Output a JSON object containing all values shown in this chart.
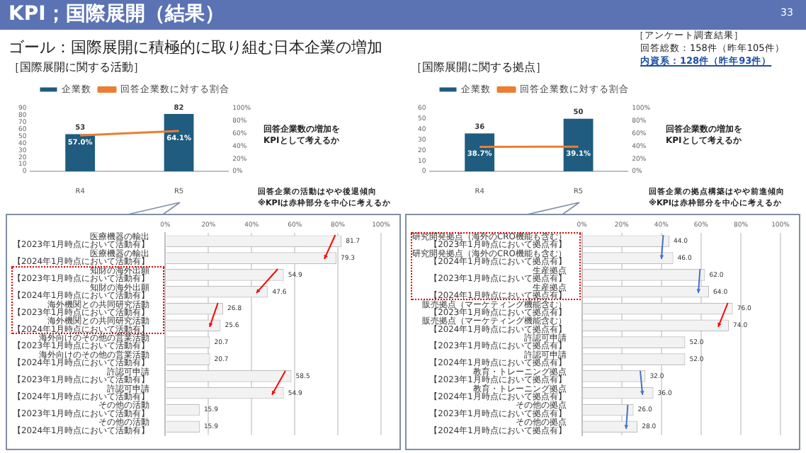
{
  "chart_data": [
    {
      "type": "bar",
      "title": "［国際展開に関する活動］",
      "categories": [
        "R4",
        "R5"
      ],
      "legend": "top",
      "grid": false,
      "marker": "none",
      "annotations": [
        "KPI；国際展開（結果）",
        "33",
        "ゴール：国際展開に積極的に取り組む日本企業の増加",
        "［アンケート調査結果］",
        "回答総数：158件（昨年105件）",
        "内資系：128件（昨年93件）",
        "回答企業数の増加を",
        "KPIとして考えるか"
      ],
      "ylim": [
        0,
        90
      ],
      "yticks": [
        0,
        10,
        20,
        30,
        40,
        50,
        60,
        70,
        80,
        90
      ],
      "y2lim": [
        0,
        100
      ],
      "y2ticks": [
        {
          "value": 0,
          "label": "0%"
        },
        {
          "value": 20,
          "label": "20%"
        },
        {
          "value": 40,
          "label": "40%"
        },
        {
          "value": 60,
          "label": "60%"
        },
        {
          "value": 80,
          "label": "80%"
        },
        {
          "value": 100,
          "label": "100%"
        }
      ],
      "series": [
        {
          "name": "企業数",
          "type": "bar",
          "color": "#1f5c7f",
          "values": [
            53,
            82
          ],
          "value_labels": [
            "53",
            "82"
          ]
        },
        {
          "name": "回答企業数に対する割合",
          "type": "line",
          "axis": "y2",
          "color": "#ed7d31",
          "values": [
            57.0,
            64.1
          ],
          "value_labels": [
            "57.0%",
            "64.1%"
          ]
        }
      ]
    },
    {
      "type": "bar",
      "title": "［国際展開に関する拠点］",
      "categories": [
        "R4",
        "R5"
      ],
      "legend": "top",
      "grid": false,
      "marker": "none",
      "annotations": [
        "回答企業数の増加を",
        "KPIとして考えるか"
      ],
      "ylim": [
        0,
        60
      ],
      "yticks": [
        0,
        10,
        20,
        30,
        40,
        50,
        60
      ],
      "y2lim": [
        0,
        100
      ],
      "y2ticks": [
        {
          "value": 0,
          "label": "0%"
        },
        {
          "value": 20,
          "label": "20%"
        },
        {
          "value": 40,
          "label": "40%"
        },
        {
          "value": 60,
          "label": "60%"
        },
        {
          "value": 80,
          "label": "80%"
        },
        {
          "value": 100,
          "label": "100%"
        }
      ],
      "series": [
        {
          "name": "企業数",
          "type": "bar",
          "color": "#1f5c7f",
          "values": [
            36,
            50
          ],
          "value_labels": [
            "36",
            "50"
          ]
        },
        {
          "name": "回答企業数に対する割合",
          "type": "line",
          "axis": "y2",
          "color": "#ed7d31",
          "values": [
            38.7,
            39.1
          ],
          "value_labels": [
            "38.7%",
            "39.1%"
          ]
        }
      ]
    },
    {
      "type": "bar",
      "orientation": "horizontal",
      "grid": "x",
      "data_labels": true,
      "color": "#f2f2f2",
      "annotations": [
        "回答企業の活動はやや後退傾向",
        "※KPIは赤枠部分を中心に考えるか"
      ],
      "categories": [
        "医療機器の輸出【2023年1月時点において活動有】",
        "医療機器の輸出【2024年1月時点において活動有】",
        "知財の海外出願【2023年1月時点において活動有】",
        "知財の海外出願【2024年1月時点において活動有】",
        "海外機関との共同研究活動【2023年1月時点において活動有】",
        "海外機関との共同研究活動【2024年1月時点において活動有】",
        "海外向けのその他の営業活動【2023年1月時点において活動有】",
        "海外向けのその他の営業活動【2024年1月時点において活動有】",
        "許認可申請【2023年1月時点において活動有】",
        "許認可申請【2024年1月時点において活動有】",
        "その他の活動【2023年1月時点において活動有】",
        "その他の活動【2024年1月時点において活動有】"
      ],
      "values": [
        81.7,
        79.3,
        54.9,
        47.6,
        26.8,
        25.6,
        20.7,
        20.7,
        58.5,
        54.9,
        15.9,
        15.9
      ],
      "xlim": [
        0,
        100
      ],
      "xticks": [
        {
          "value": 0,
          "label": "0%"
        },
        {
          "value": 20,
          "label": "20%"
        },
        {
          "value": 40,
          "label": "40%"
        },
        {
          "value": 60,
          "label": "60%"
        },
        {
          "value": 80,
          "label": "80%"
        },
        {
          "value": 100,
          "label": "100%"
        }
      ]
    },
    {
      "type": "bar",
      "orientation": "horizontal",
      "grid": "x",
      "color": "#f2f2f2",
      "annotations": [
        "回答企業の拠点構築はやや前進傾向",
        "※KPIは赤枠部分を中心に考えるか"
      ],
      "categories": [
        "研究開発拠点（海外のCRO機能も含む）【2023年1月時点において拠点有】",
        "研究開発拠点（海外のCRO機能も含む）【2024年1月時点において拠点有】",
        "生産拠点【2023年1月時点において拠点有】",
        "生産拠点【2024年1月時点において拠点有】",
        "販売拠点（マーケティング機能含む）【2023年1月時点において拠点有】",
        "販売拠点（マーケティング機能含む）【2024年1月時点において拠点有】",
        "許認可申請【2023年1月時点において拠点有】",
        "許認可申請【2024年1月時点において拠点有】",
        "教育・トレーニング拠点【2023年1月時点において拠点有】",
        "教育・トレーニング拠点【2024年1月時点において拠点有】",
        "その他の拠点【2023年1月時点において拠点有】",
        "その他の拠点【2024年1月時点において拠点有】"
      ],
      "values": [
        44.0,
        46.0,
        62.0,
        64.0,
        76.0,
        74.0,
        52.0,
        52.0,
        32.0,
        36.0,
        26.0,
        28.0
      ],
      "value_labels": [
        "44.0",
        "46.0",
        "62.0",
        "64.0",
        "76.0",
        "74.0",
        "52.0",
        "52.0",
        "32.0",
        "36.0",
        "26.0",
        "28.0"
      ],
      "xlim": [
        0,
        100
      ],
      "xticks": [
        {
          "value": 0,
          "label": "0%"
        },
        {
          "value": 20,
          "label": "20%"
        },
        {
          "value": 40,
          "label": "40%"
        },
        {
          "value": 60,
          "label": "60%"
        },
        {
          "value": 80,
          "label": "80%"
        },
        {
          "value": 100,
          "label": "100%"
        }
      ]
    }
  ]
}
